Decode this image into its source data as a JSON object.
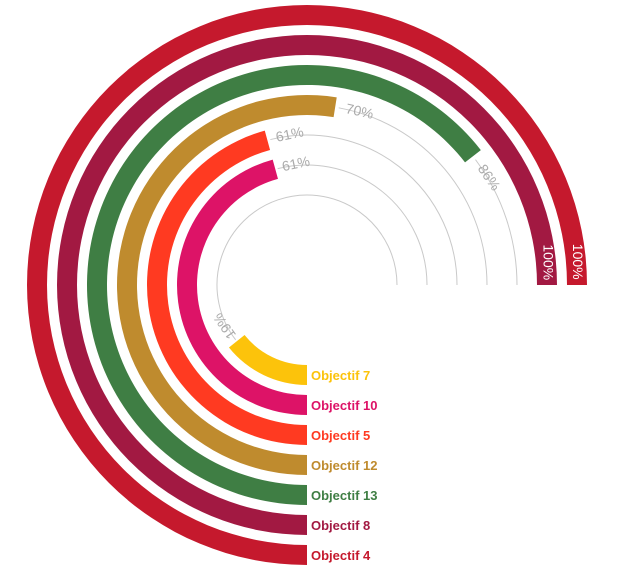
{
  "chart_data": {
    "type": "radial-bar",
    "unit": "%",
    "max": 100,
    "grid": true,
    "series": [
      {
        "category": "Objectif 7",
        "value": 19,
        "label": "19%",
        "color": "#FCC30B"
      },
      {
        "category": "Objectif 10",
        "value": 61,
        "label": "61%",
        "color": "#DD1367"
      },
      {
        "category": "Objectif 5",
        "value": 61,
        "label": "61%",
        "color": "#FF3A21"
      },
      {
        "category": "Objectif 12",
        "value": 70,
        "label": "70%",
        "color": "#BF8B2E"
      },
      {
        "category": "Objectif 13",
        "value": 86,
        "label": "86%",
        "color": "#3F7E44"
      },
      {
        "category": "Objectif 8",
        "value": 100,
        "label": "100%",
        "color": "#A21942"
      },
      {
        "category": "Objectif 4",
        "value": 100,
        "label": "100%",
        "color": "#C5192D"
      }
    ]
  }
}
